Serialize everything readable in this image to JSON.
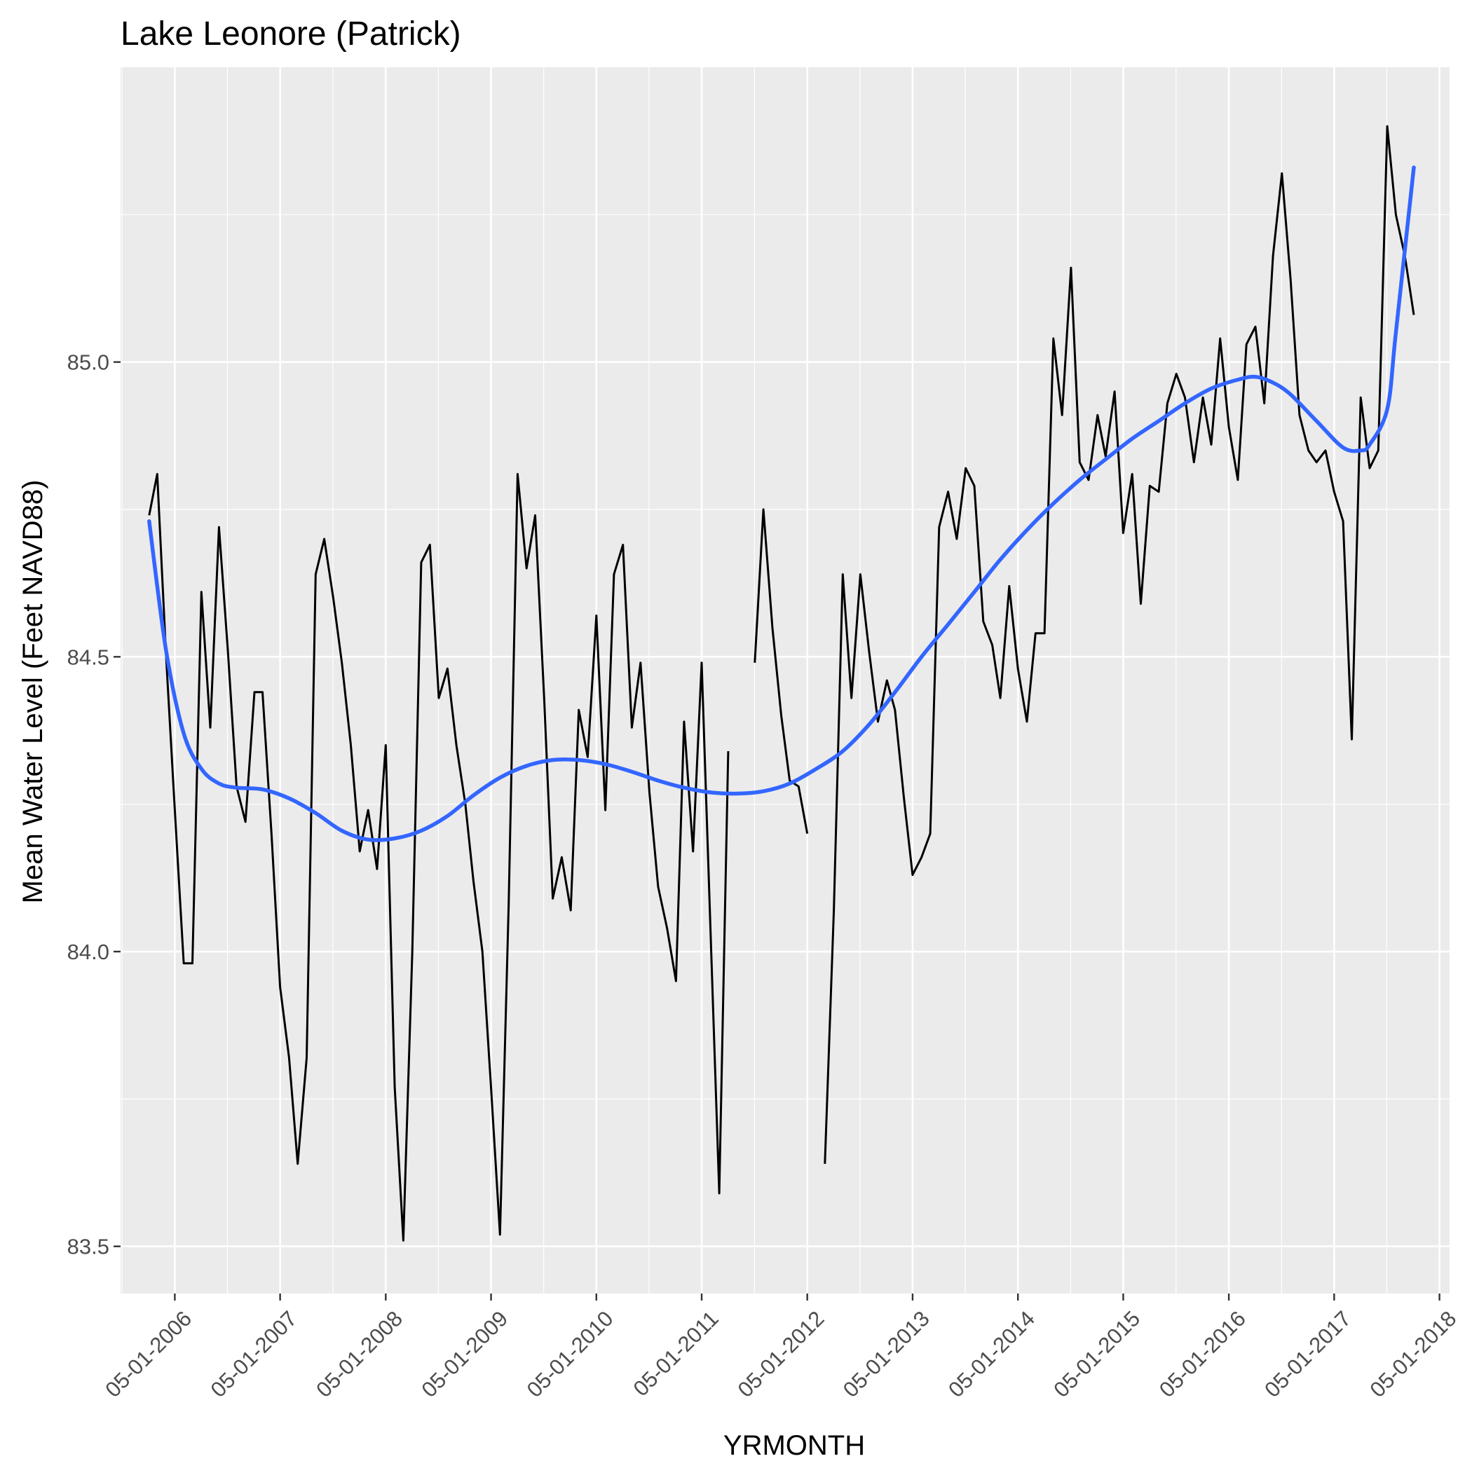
{
  "chart_data": {
    "type": "line",
    "title": "Lake Leonore (Patrick)",
    "xlabel": "YRMONTH",
    "ylabel": "Mean Water Level (Feet NAVD88)",
    "x_tick_labels": [
      "05-01-2006",
      "05-01-2007",
      "05-01-2008",
      "05-01-2009",
      "05-01-2010",
      "05-01-2011",
      "05-01-2012",
      "05-01-2013",
      "05-01-2014",
      "05-01-2015",
      "05-01-2016",
      "05-01-2017",
      "05-01-2018"
    ],
    "y_tick_labels": [
      "83.5",
      "84.0",
      "84.5",
      "85.0"
    ],
    "y_ticks": [
      83.5,
      84.0,
      84.5,
      85.0
    ],
    "xlim": [
      "2005-10-25",
      "2018-06-05"
    ],
    "ylim": [
      83.42,
      85.5
    ],
    "grid": true,
    "colors": {
      "panel": "#ebebeb",
      "grid": "#ffffff",
      "observed": "#000000",
      "smooth": "#3366ff"
    },
    "series": [
      {
        "style": "line",
        "segments": [
          [
            [
              "2006-02-01",
              84.74
            ],
            [
              "2006-03-01",
              84.81
            ],
            [
              "2006-04-01",
              84.5
            ],
            [
              "2006-05-01",
              84.24
            ],
            [
              "2006-06-01",
              83.98
            ],
            [
              "2006-07-01",
              83.98
            ],
            [
              "2006-08-01",
              84.61
            ],
            [
              "2006-09-01",
              84.38
            ],
            [
              "2006-10-01",
              84.72
            ],
            [
              "2006-11-01",
              84.51
            ],
            [
              "2006-12-01",
              84.28
            ],
            [
              "2007-01-01",
              84.22
            ],
            [
              "2007-02-01",
              84.44
            ],
            [
              "2007-03-01",
              84.44
            ],
            [
              "2007-04-01",
              84.2
            ],
            [
              "2007-05-01",
              83.94
            ],
            [
              "2007-06-01",
              83.82
            ],
            [
              "2007-07-01",
              83.64
            ],
            [
              "2007-08-01",
              83.82
            ],
            [
              "2007-09-01",
              84.64
            ],
            [
              "2007-10-01",
              84.7
            ],
            [
              "2007-11-01",
              84.6
            ],
            [
              "2007-12-01",
              84.49
            ],
            [
              "2008-01-01",
              84.35
            ],
            [
              "2008-02-01",
              84.17
            ],
            [
              "2008-03-01",
              84.24
            ],
            [
              "2008-04-01",
              84.14
            ],
            [
              "2008-05-01",
              84.35
            ],
            [
              "2008-06-01",
              83.77
            ],
            [
              "2008-07-01",
              83.51
            ],
            [
              "2008-08-01",
              84.0
            ],
            [
              "2008-09-01",
              84.66
            ],
            [
              "2008-10-01",
              84.69
            ],
            [
              "2008-11-01",
              84.43
            ],
            [
              "2008-12-01",
              84.48
            ],
            [
              "2009-01-01",
              84.35
            ],
            [
              "2009-02-01",
              84.25
            ],
            [
              "2009-03-01",
              84.12
            ],
            [
              "2009-04-01",
              84.0
            ],
            [
              "2009-05-01",
              83.77
            ],
            [
              "2009-06-01",
              83.52
            ],
            [
              "2009-07-01",
              84.08
            ],
            [
              "2009-08-01",
              84.81
            ],
            [
              "2009-09-01",
              84.65
            ],
            [
              "2009-10-01",
              84.74
            ],
            [
              "2009-11-01",
              84.43
            ],
            [
              "2009-12-01",
              84.09
            ],
            [
              "2010-01-01",
              84.16
            ],
            [
              "2010-02-01",
              84.07
            ],
            [
              "2010-03-01",
              84.41
            ],
            [
              "2010-04-01",
              84.33
            ],
            [
              "2010-05-01",
              84.57
            ],
            [
              "2010-06-01",
              84.24
            ],
            [
              "2010-07-01",
              84.64
            ],
            [
              "2010-08-01",
              84.69
            ],
            [
              "2010-09-01",
              84.38
            ],
            [
              "2010-10-01",
              84.49
            ],
            [
              "2010-11-01",
              84.27
            ],
            [
              "2010-12-01",
              84.11
            ],
            [
              "2011-01-01",
              84.04
            ],
            [
              "2011-02-01",
              83.95
            ],
            [
              "2011-03-01",
              84.39
            ],
            [
              "2011-04-01",
              84.17
            ],
            [
              "2011-05-01",
              84.49
            ],
            [
              "2011-06-01",
              84.03
            ],
            [
              "2011-07-01",
              83.59
            ],
            [
              "2011-08-01",
              84.34
            ]
          ],
          [
            [
              "2011-11-01",
              84.49
            ],
            [
              "2011-12-01",
              84.75
            ],
            [
              "2012-01-01",
              84.55
            ],
            [
              "2012-02-01",
              84.4
            ],
            [
              "2012-03-01",
              84.29
            ],
            [
              "2012-04-01",
              84.28
            ],
            [
              "2012-05-01",
              84.2
            ]
          ],
          [
            [
              "2012-07-01",
              83.64
            ],
            [
              "2012-08-01",
              84.07
            ],
            [
              "2012-09-01",
              84.64
            ],
            [
              "2012-10-01",
              84.43
            ],
            [
              "2012-11-01",
              84.64
            ],
            [
              "2012-12-01",
              84.51
            ],
            [
              "2013-01-01",
              84.39
            ],
            [
              "2013-02-01",
              84.46
            ],
            [
              "2013-03-01",
              84.41
            ],
            [
              "2013-04-01",
              84.26
            ],
            [
              "2013-05-01",
              84.13
            ],
            [
              "2013-06-01",
              84.16
            ],
            [
              "2013-07-01",
              84.2
            ],
            [
              "2013-08-01",
              84.72
            ],
            [
              "2013-09-01",
              84.78
            ],
            [
              "2013-10-01",
              84.7
            ],
            [
              "2013-11-01",
              84.82
            ],
            [
              "2013-12-01",
              84.79
            ],
            [
              "2014-01-01",
              84.56
            ],
            [
              "2014-02-01",
              84.52
            ],
            [
              "2014-03-01",
              84.43
            ],
            [
              "2014-04-01",
              84.62
            ],
            [
              "2014-05-01",
              84.48
            ],
            [
              "2014-06-01",
              84.39
            ],
            [
              "2014-07-01",
              84.54
            ],
            [
              "2014-08-01",
              84.54
            ],
            [
              "2014-09-01",
              85.04
            ],
            [
              "2014-10-01",
              84.91
            ],
            [
              "2014-11-01",
              85.16
            ],
            [
              "2014-12-01",
              84.83
            ],
            [
              "2015-01-01",
              84.8
            ],
            [
              "2015-02-01",
              84.91
            ],
            [
              "2015-03-01",
              84.84
            ],
            [
              "2015-04-01",
              84.95
            ],
            [
              "2015-05-01",
              84.71
            ],
            [
              "2015-06-01",
              84.81
            ],
            [
              "2015-07-01",
              84.59
            ],
            [
              "2015-08-01",
              84.79
            ],
            [
              "2015-09-01",
              84.78
            ],
            [
              "2015-10-01",
              84.93
            ],
            [
              "2015-11-01",
              84.98
            ],
            [
              "2015-12-01",
              84.94
            ],
            [
              "2016-01-01",
              84.83
            ],
            [
              "2016-02-01",
              84.94
            ],
            [
              "2016-03-01",
              84.86
            ],
            [
              "2016-04-01",
              85.04
            ],
            [
              "2016-05-01",
              84.89
            ],
            [
              "2016-06-01",
              84.8
            ],
            [
              "2016-07-01",
              85.03
            ],
            [
              "2016-08-01",
              85.06
            ],
            [
              "2016-09-01",
              84.93
            ],
            [
              "2016-10-01",
              85.18
            ],
            [
              "2016-11-01",
              85.32
            ],
            [
              "2016-12-01",
              85.14
            ],
            [
              "2017-01-01",
              84.91
            ],
            [
              "2017-02-01",
              84.85
            ],
            [
              "2017-03-01",
              84.83
            ],
            [
              "2017-04-01",
              84.85
            ],
            [
              "2017-05-01",
              84.78
            ],
            [
              "2017-06-01",
              84.73
            ],
            [
              "2017-07-01",
              84.36
            ],
            [
              "2017-08-01",
              84.94
            ],
            [
              "2017-09-01",
              84.82
            ],
            [
              "2017-10-01",
              84.85
            ],
            [
              "2017-11-01",
              85.4
            ],
            [
              "2017-12-01",
              85.25
            ],
            [
              "2018-01-01",
              85.18
            ],
            [
              "2018-02-01",
              85.08
            ]
          ]
        ]
      },
      {
        "style": "smooth",
        "points": [
          [
            "2006-02-01",
            84.73
          ],
          [
            "2006-04-01",
            84.51
          ],
          [
            "2006-06-01",
            84.37
          ],
          [
            "2006-08-01",
            84.31
          ],
          [
            "2006-10-01",
            84.285
          ],
          [
            "2006-12-01",
            84.278
          ],
          [
            "2007-03-01",
            84.275
          ],
          [
            "2007-06-01",
            84.26
          ],
          [
            "2007-09-01",
            84.235
          ],
          [
            "2007-12-01",
            84.205
          ],
          [
            "2008-03-01",
            84.19
          ],
          [
            "2008-06-01",
            84.192
          ],
          [
            "2008-09-01",
            84.205
          ],
          [
            "2008-12-01",
            84.23
          ],
          [
            "2009-03-01",
            84.265
          ],
          [
            "2009-06-01",
            84.295
          ],
          [
            "2009-09-01",
            84.315
          ],
          [
            "2009-12-01",
            84.325
          ],
          [
            "2010-03-01",
            84.325
          ],
          [
            "2010-06-01",
            84.318
          ],
          [
            "2010-09-01",
            84.305
          ],
          [
            "2010-12-01",
            84.29
          ],
          [
            "2011-03-01",
            84.278
          ],
          [
            "2011-06-01",
            84.27
          ],
          [
            "2011-09-01",
            84.268
          ],
          [
            "2011-12-01",
            84.272
          ],
          [
            "2012-03-01",
            84.285
          ],
          [
            "2012-06-01",
            84.31
          ],
          [
            "2012-09-01",
            84.34
          ],
          [
            "2012-12-01",
            84.385
          ],
          [
            "2013-03-01",
            84.44
          ],
          [
            "2013-06-01",
            84.5
          ],
          [
            "2013-09-01",
            84.555
          ],
          [
            "2013-12-01",
            84.61
          ],
          [
            "2014-03-01",
            84.665
          ],
          [
            "2014-06-01",
            84.715
          ],
          [
            "2014-09-01",
            84.76
          ],
          [
            "2014-12-01",
            84.8
          ],
          [
            "2015-03-01",
            84.835
          ],
          [
            "2015-06-01",
            84.87
          ],
          [
            "2015-09-01",
            84.9
          ],
          [
            "2015-12-01",
            84.93
          ],
          [
            "2016-03-01",
            84.955
          ],
          [
            "2016-06-01",
            84.97
          ],
          [
            "2016-08-01",
            84.975
          ],
          [
            "2016-10-01",
            84.965
          ],
          [
            "2016-12-01",
            84.945
          ],
          [
            "2017-03-01",
            84.9
          ],
          [
            "2017-06-01",
            84.855
          ],
          [
            "2017-08-01",
            84.85
          ],
          [
            "2017-09-01",
            84.86
          ],
          [
            "2017-11-01",
            84.92
          ],
          [
            "2017-12-01",
            85.05
          ],
          [
            "2018-02-01",
            85.33
          ]
        ]
      }
    ]
  }
}
